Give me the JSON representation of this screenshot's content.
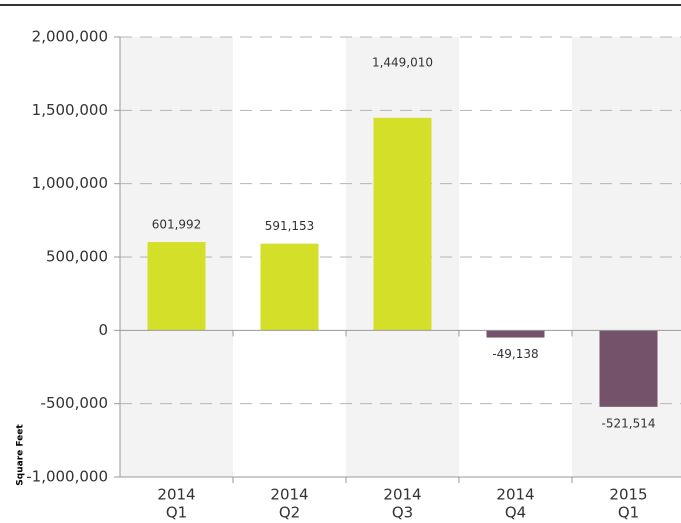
{
  "chart_data": {
    "type": "bar",
    "y_label": "Square Feet",
    "categories": [
      [
        "2014",
        "Q1"
      ],
      [
        "2014",
        "Q2"
      ],
      [
        "2014",
        "Q3"
      ],
      [
        "2014",
        "Q4"
      ],
      [
        "2015",
        "Q1"
      ]
    ],
    "values": [
      601992,
      591153,
      1449010,
      -49138,
      -521514
    ],
    "value_labels": [
      "601,992",
      "591,153",
      "1,449,010",
      "-49,138",
      "-521,514"
    ],
    "colors": [
      "#d4df2a",
      "#d4df2a",
      "#d4df2a",
      "#74526a",
      "#74526a"
    ],
    "ylim": [
      -1000000,
      2000000
    ],
    "yticks": [
      {
        "value": -1000000,
        "label": "-1,000,000"
      },
      {
        "value": -500000,
        "label": "-500,000"
      },
      0,
      {
        "value": 500000,
        "label": "500,000"
      },
      {
        "value": 1000000,
        "label": "1,000,000"
      },
      {
        "value": 1500000,
        "label": "1,500,000"
      },
      {
        "value": 2000000,
        "label": "2,000,000"
      }
    ],
    "grid": true
  }
}
